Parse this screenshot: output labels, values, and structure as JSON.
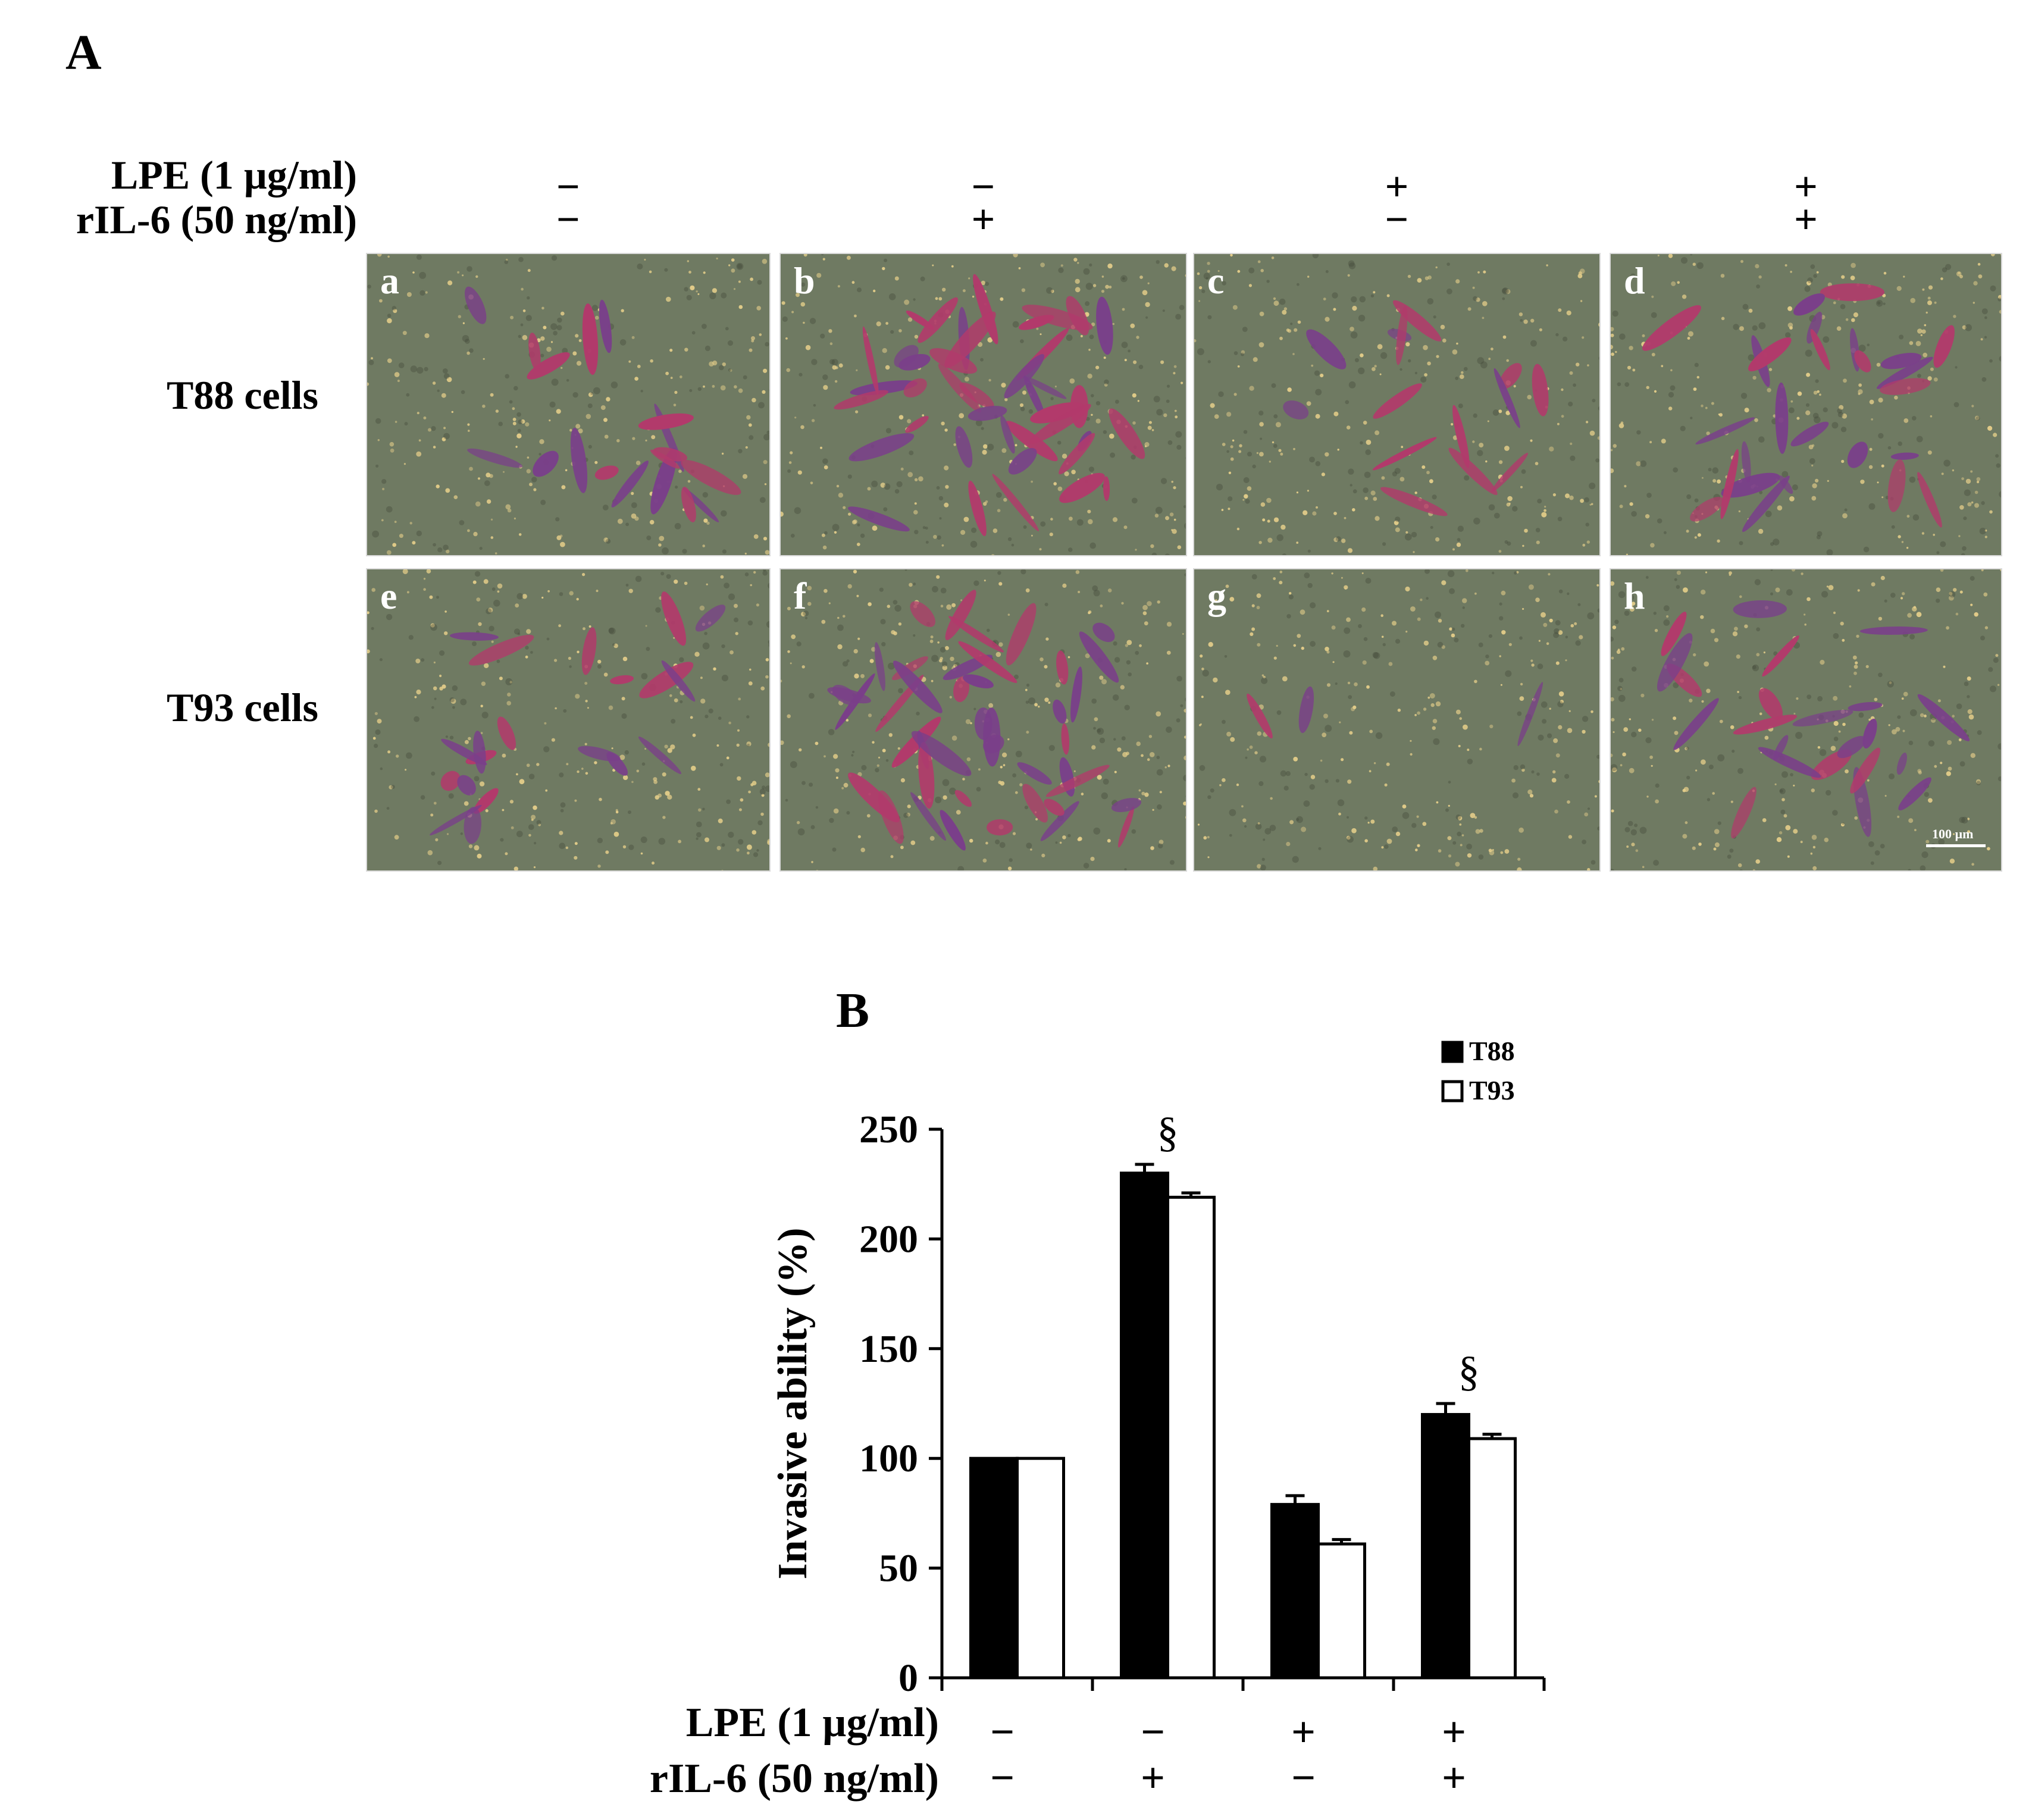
{
  "panel_a": {
    "letter": "A",
    "treatment_labels": {
      "lpe": "LPE (1 µg/ml)",
      "ril6": "rIL-6 (50 ng/ml)"
    },
    "columns": [
      {
        "lpe": "−",
        "ril6": "−"
      },
      {
        "lpe": "−",
        "ril6": "+"
      },
      {
        "lpe": "+",
        "ril6": "−"
      },
      {
        "lpe": "+",
        "ril6": "+"
      }
    ],
    "rows": [
      {
        "label": "T88 cells",
        "panels": [
          "a",
          "b",
          "c",
          "d"
        ]
      },
      {
        "label": "T93 cells",
        "panels": [
          "e",
          "f",
          "g",
          "h"
        ]
      }
    ],
    "scale_bar": "100 µm",
    "colors": {
      "background": "#6f7a62",
      "stain": "#b23a6b",
      "dot": "#e6cf8a"
    }
  },
  "panel_b": {
    "letter": "B",
    "chart_data": {
      "type": "bar",
      "ylabel": "Invasive ability (%)",
      "ylim": [
        0,
        250
      ],
      "yticks": [
        0,
        50,
        100,
        150,
        200,
        250
      ],
      "categories": [
        "1",
        "2",
        "3",
        "4"
      ],
      "x_treatments": {
        "lpe_label": "LPE (1 µg/ml)",
        "ril6_label": "rIL-6 (50 ng/ml)",
        "lpe": [
          "−",
          "−",
          "+",
          "+"
        ],
        "ril6": [
          "−",
          "+",
          "−",
          "+"
        ]
      },
      "series": [
        {
          "name": "T88",
          "values": [
            100,
            230,
            79,
            120
          ],
          "errors": [
            0,
            4,
            4,
            5
          ],
          "color": "#000000"
        },
        {
          "name": "T93",
          "values": [
            100,
            219,
            61,
            109
          ],
          "errors": [
            0,
            2,
            2,
            2
          ],
          "color": "#ffffff"
        }
      ],
      "annotations": [
        {
          "category": 1,
          "text": "§"
        },
        {
          "category": 3,
          "text": "§"
        }
      ],
      "legend": "top-right",
      "grid": false
    }
  }
}
